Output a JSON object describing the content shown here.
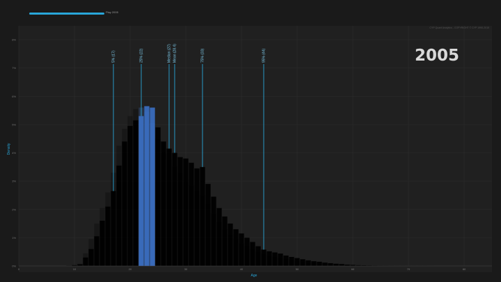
{
  "player": {
    "label": "Play 2005",
    "progress": 1.0,
    "accent": "#29a6d9"
  },
  "chart_data": {
    "type": "bar",
    "year": "2005",
    "copyright": "CYP Quant Analytics - COPYRIGHT © CYP 1990-2015",
    "xlabel": "Age",
    "ylabel": "Density",
    "xlim": [
      0,
      85
    ],
    "ylim": [
      0,
      8
    ],
    "y_unit": "%",
    "x_ticks": [
      0,
      10,
      20,
      30,
      40,
      50,
      60,
      70,
      80
    ],
    "y_ticks": [
      0,
      1,
      2,
      3,
      4,
      5,
      6,
      7,
      8
    ],
    "grid": true,
    "ages": [
      9,
      10,
      11,
      12,
      13,
      14,
      15,
      16,
      17,
      18,
      19,
      20,
      21,
      22,
      23,
      24,
      25,
      26,
      27,
      28,
      29,
      30,
      31,
      32,
      33,
      34,
      35,
      36,
      37,
      38,
      39,
      40,
      41,
      42,
      43,
      44,
      45,
      46,
      47,
      48,
      49,
      50,
      51,
      52,
      53,
      54,
      55,
      56,
      57,
      58,
      59,
      60,
      61,
      62,
      63,
      64,
      65,
      66,
      67,
      68,
      69,
      70,
      71,
      72,
      73,
      74,
      75,
      76,
      77,
      78,
      79,
      80
    ],
    "values": [
      0.01,
      0.03,
      0.06,
      0.3,
      0.6,
      1.05,
      1.6,
      2.1,
      2.65,
      3.55,
      4.4,
      4.95,
      5.15,
      5.3,
      5.65,
      5.6,
      4.9,
      4.4,
      4.15,
      4.0,
      3.85,
      3.8,
      3.65,
      3.45,
      3.5,
      2.9,
      2.45,
      2.05,
      1.75,
      1.5,
      1.3,
      1.15,
      1.0,
      0.85,
      0.7,
      0.58,
      0.52,
      0.48,
      0.44,
      0.37,
      0.32,
      0.28,
      0.24,
      0.2,
      0.17,
      0.15,
      0.12,
      0.1,
      0.08,
      0.07,
      0.05,
      0.04,
      0.03,
      0.025,
      0.02,
      0.015,
      0.012,
      0.01,
      0.008,
      0.006,
      0.005,
      0.004,
      0.003,
      0.002,
      0.002,
      0.0015,
      0.001,
      0.001,
      0.001,
      0.001,
      0.001,
      0.001
    ],
    "ghost_values": [
      0.01,
      0.03,
      0.08,
      0.45,
      0.95,
      1.5,
      2.05,
      2.6,
      3.3,
      4.25,
      4.85,
      5.3,
      5.55,
      5.6,
      5.45,
      5.05,
      4.5,
      4.0,
      3.75,
      3.5,
      3.3,
      3.05,
      2.85,
      2.65,
      2.5,
      2.2,
      1.85,
      1.55,
      1.3,
      1.1,
      0.95,
      0.8,
      0.7,
      0.6,
      0.5,
      0.42,
      0.38,
      0.34,
      0.3,
      0.26,
      0.22,
      0.19,
      0.16,
      0.13,
      0.11,
      0.09,
      0.07,
      0.06,
      0.05,
      0.04,
      0.03,
      0.02,
      0.02,
      0.015,
      0.01,
      0.01,
      0.008,
      0.006,
      0.005,
      0.004,
      0.003,
      0.002,
      0.002,
      0.001,
      0.001,
      0.001,
      0.001,
      0.001,
      0.001,
      0.001,
      0.001,
      0.001
    ],
    "markers": [
      {
        "label": "5% (17)",
        "age": 17
      },
      {
        "label": "25% (22)",
        "age": 22
      },
      {
        "label": "Median (27)",
        "age": 27
      },
      {
        "label": "Mean (28.4)",
        "age": 28
      },
      {
        "label": "75% (33)",
        "age": 33
      },
      {
        "label": "95% (44)",
        "age": 44
      }
    ],
    "colors": {
      "low": "#c62b3e",
      "mid": "#7a4aa5",
      "peak": "#3b6fc2",
      "line": "#29a6d9"
    }
  }
}
